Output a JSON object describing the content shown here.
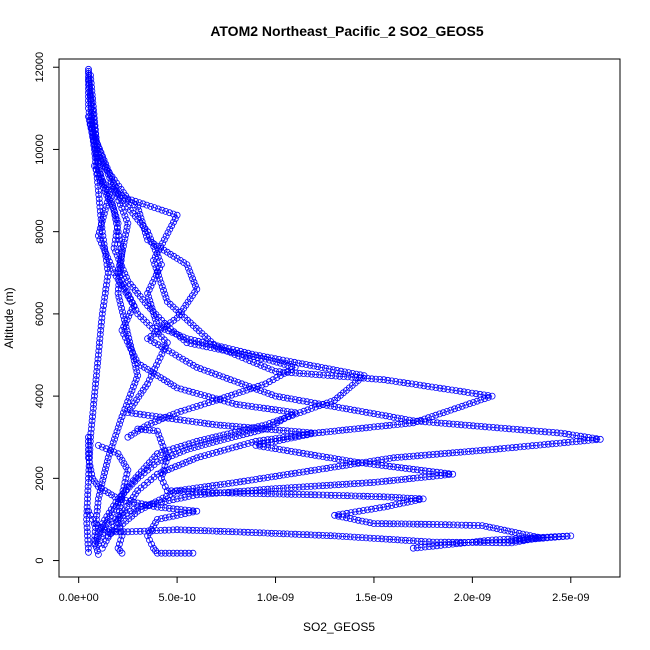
{
  "chart_data": {
    "type": "line",
    "title": "ATOM2 Northeast_Pacific_2 SO2_GEOS5",
    "xlabel": "SO2_GEOS5",
    "ylabel": "Altitude (m)",
    "xlim": [
      -1e-10,
      2.75e-09
    ],
    "ylim": [
      -400,
      12200
    ],
    "x_ticks": [
      0,
      5e-10,
      1e-09,
      1.5e-09,
      2e-09,
      2.5e-09
    ],
    "x_tick_labels": [
      "0.0e+00",
      "5.0e-10",
      "1.0e-09",
      "1.5e-09",
      "2.0e-09",
      "2.5e-09"
    ],
    "y_ticks": [
      0,
      2000,
      4000,
      6000,
      8000,
      10000,
      12000
    ],
    "y_tick_labels": [
      "0",
      "2000",
      "4000",
      "6000",
      "8000",
      "10000",
      "12000"
    ],
    "marker": "open-circle",
    "series_color": "#0000ff",
    "profiles": [
      [
        [
          5e-11,
          11950
        ],
        [
          5e-11,
          11000
        ],
        [
          8e-11,
          10000
        ],
        [
          1e-10,
          9000
        ],
        [
          1.2e-10,
          8000
        ],
        [
          1.5e-10,
          7000
        ],
        [
          1.2e-10,
          6000
        ],
        [
          1e-10,
          5000
        ],
        [
          8e-11,
          4000
        ],
        [
          6e-11,
          3000
        ],
        [
          5e-11,
          2000
        ],
        [
          4e-11,
          1000
        ],
        [
          5e-11,
          200
        ]
      ],
      [
        [
          5e-11,
          11900
        ],
        [
          7e-11,
          10500
        ],
        [
          1e-10,
          9500
        ],
        [
          1.8e-10,
          8500
        ],
        [
          2.2e-10,
          7500
        ],
        [
          2e-10,
          6500
        ],
        [
          2.5e-10,
          5500
        ],
        [
          3e-10,
          4500
        ],
        [
          2.2e-10,
          3500
        ],
        [
          1.5e-10,
          2500
        ],
        [
          1e-10,
          1500
        ],
        [
          8e-11,
          500
        ],
        [
          1e-10,
          150
        ]
      ],
      [
        [
          6e-11,
          11800
        ],
        [
          9e-11,
          10200
        ],
        [
          2e-10,
          8900
        ],
        [
          3.5e-10,
          8000
        ],
        [
          4.2e-10,
          7200
        ],
        [
          3.5e-10,
          6500
        ],
        [
          4e-10,
          5700
        ],
        [
          5.5e-10,
          5400
        ],
        [
          9e-10,
          5000
        ],
        [
          1.45e-09,
          4500
        ],
        [
          1.3e-09,
          3900
        ],
        [
          9.5e-10,
          3300
        ],
        [
          6e-10,
          2900
        ],
        [
          4e-10,
          2600
        ],
        [
          2.5e-10,
          1800
        ],
        [
          1.5e-10,
          1000
        ],
        [
          1e-10,
          400
        ]
      ],
      [
        [
          5e-11,
          11700
        ],
        [
          1e-10,
          9800
        ],
        [
          2.5e-10,
          8800
        ],
        [
          5e-10,
          8400
        ],
        [
          3.8e-10,
          7300
        ],
        [
          4.5e-10,
          6300
        ],
        [
          7e-10,
          5200
        ],
        [
          1e-09,
          4600
        ],
        [
          1.55e-09,
          4400
        ],
        [
          2.1e-09,
          4000
        ],
        [
          1.7e-09,
          3350
        ],
        [
          1.2e-09,
          3100
        ],
        [
          9e-10,
          2900
        ],
        [
          6e-10,
          2500
        ],
        [
          4e-10,
          2100
        ],
        [
          3e-10,
          1700
        ],
        [
          2e-10,
          1000
        ],
        [
          1.2e-10,
          300
        ]
      ],
      [
        [
          5e-11,
          10800
        ],
        [
          1.2e-10,
          9200
        ],
        [
          3e-10,
          8600
        ],
        [
          3.5e-10,
          7800
        ],
        [
          5.5e-10,
          7200
        ],
        [
          6e-10,
          6600
        ],
        [
          5e-10,
          5900
        ],
        [
          3.5e-10,
          5400
        ],
        [
          6e-10,
          4700
        ],
        [
          1e-09,
          4000
        ],
        [
          1.7e-09,
          3400
        ],
        [
          2.45e-09,
          3100
        ],
        [
          2.65e-09,
          2950
        ],
        [
          2.1e-09,
          2700
        ],
        [
          1.6e-09,
          2500
        ],
        [
          1.2e-09,
          2200
        ],
        [
          8e-10,
          1900
        ],
        [
          5e-10,
          1700
        ],
        [
          3e-10,
          1200
        ],
        [
          1.5e-10,
          600
        ]
      ],
      [
        [
          6e-11,
          10600
        ],
        [
          1.5e-10,
          9400
        ],
        [
          2.5e-10,
          8200
        ],
        [
          2e-10,
          7000
        ],
        [
          3e-10,
          6000
        ],
        [
          4.5e-10,
          5300
        ],
        [
          3.5e-10,
          4300
        ],
        [
          2.5e-10,
          3600
        ],
        [
          7e-10,
          3300
        ],
        [
          1.2e-09,
          3100
        ],
        [
          9e-10,
          2800
        ],
        [
          1.4e-09,
          2400
        ],
        [
          1.9e-09,
          2100
        ],
        [
          1.5e-09,
          1900
        ],
        [
          1e-09,
          1750
        ],
        [
          6e-10,
          1600
        ],
        [
          3e-10,
          1300
        ],
        [
          1.5e-10,
          900
        ]
      ],
      [
        [
          3e-10,
          3200
        ],
        [
          4e-10,
          3150
        ],
        [
          4.5e-10,
          2500
        ],
        [
          4.2e-10,
          2000
        ],
        [
          4.5e-10,
          1700
        ],
        [
          7e-10,
          1650
        ],
        [
          1.2e-09,
          1600
        ],
        [
          1.55e-09,
          1550
        ],
        [
          1.75e-09,
          1500
        ],
        [
          1.55e-09,
          1300
        ],
        [
          1.3e-09,
          1100
        ],
        [
          1.5e-09,
          900
        ],
        [
          1.8e-09,
          880
        ],
        [
          2.05e-09,
          850
        ],
        [
          2.2e-09,
          700
        ],
        [
          2.35e-09,
          550
        ],
        [
          2.2e-09,
          480
        ],
        [
          2.5e-09,
          600
        ],
        [
          2.1e-09,
          500
        ],
        [
          1.7e-09,
          300
        ]
      ],
      [
        [
          5e-11,
          3000
        ],
        [
          5e-11,
          2500
        ],
        [
          7e-11,
          2000
        ],
        [
          1e-10,
          1800
        ],
        [
          2e-10,
          1500
        ],
        [
          4e-10,
          1300
        ],
        [
          6e-10,
          1200
        ],
        [
          4e-10,
          1000
        ],
        [
          3.5e-10,
          600
        ],
        [
          3.8e-10,
          300
        ],
        [
          4e-10,
          180
        ],
        [
          5e-10,
          180
        ],
        [
          5.8e-10,
          180
        ]
      ],
      [
        [
          5e-11,
          1200
        ],
        [
          8e-11,
          900
        ],
        [
          1.5e-10,
          700
        ],
        [
          2.5e-10,
          700
        ],
        [
          5e-10,
          750
        ],
        [
          9e-10,
          680
        ],
        [
          1.3e-09,
          600
        ],
        [
          1.8e-09,
          450
        ],
        [
          2.2e-09,
          430
        ],
        [
          2.3e-09,
          520
        ]
      ],
      [
        [
          1e-10,
          2800
        ],
        [
          2e-10,
          2600
        ],
        [
          2.5e-10,
          2200
        ],
        [
          2.2e-10,
          1600
        ],
        [
          2e-10,
          1000
        ],
        [
          2.2e-10,
          600
        ],
        [
          2e-10,
          300
        ],
        [
          2.2e-10,
          180
        ]
      ],
      [
        [
          1.5e-10,
          9000
        ],
        [
          2e-10,
          8200
        ],
        [
          1.8e-10,
          7600
        ],
        [
          2.5e-10,
          6800
        ],
        [
          3.5e-10,
          6200
        ],
        [
          4.5e-10,
          5700
        ],
        [
          5.5e-10,
          5300
        ],
        [
          7.5e-10,
          5100
        ],
        [
          9.5e-10,
          4900
        ],
        [
          1.1e-09,
          4700
        ],
        [
          9.5e-10,
          4300
        ],
        [
          7e-10,
          3900
        ],
        [
          5e-10,
          3600
        ],
        [
          3.5e-10,
          3300
        ],
        [
          2.5e-10,
          3000
        ]
      ],
      [
        [
          8e-11,
          9600
        ],
        [
          1.5e-10,
          8800
        ],
        [
          1e-10,
          7900
        ],
        [
          1.8e-10,
          7000
        ],
        [
          2.8e-10,
          6200
        ],
        [
          2.2e-10,
          5600
        ],
        [
          3e-10,
          4800
        ],
        [
          5e-10,
          4200
        ],
        [
          8e-10,
          3800
        ],
        [
          1.1e-09,
          3600
        ],
        [
          9.5e-10,
          3200
        ],
        [
          7e-10,
          2900
        ],
        [
          5.5e-10,
          2700
        ],
        [
          4e-10,
          2400
        ],
        [
          3e-10,
          2000
        ],
        [
          2e-10,
          1500
        ],
        [
          1.2e-10,
          900
        ],
        [
          8e-11,
          400
        ]
      ]
    ]
  }
}
